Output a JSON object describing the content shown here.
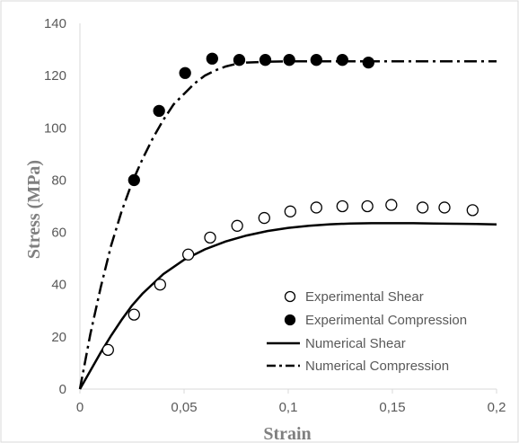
{
  "chart_data": {
    "type": "scatter",
    "title": "",
    "xlabel": "Strain",
    "ylabel": "Stress (MPa)",
    "xlim": [
      0,
      0.2
    ],
    "ylim": [
      0,
      140
    ],
    "x_ticks": [
      "0",
      "0,05",
      "0,1",
      "0,15",
      "0,2"
    ],
    "y_ticks": [
      "0",
      "20",
      "40",
      "60",
      "80",
      "100",
      "120",
      "140"
    ],
    "grid": false,
    "legend_position": "bottom-right",
    "series": [
      {
        "name": "Experimental Shear",
        "style": "open-circle",
        "color": "#000000",
        "x": [
          0.0135,
          0.026,
          0.0385,
          0.052,
          0.0625,
          0.0755,
          0.0885,
          0.101,
          0.1135,
          0.126,
          0.138,
          0.1495,
          0.1645,
          0.175,
          0.1885
        ],
        "y": [
          15,
          28.5,
          40,
          51.5,
          58,
          62.5,
          65.5,
          68,
          69.5,
          70,
          70,
          70.5,
          69.5,
          69.5,
          68.5
        ]
      },
      {
        "name": "Experimental Compression",
        "style": "filled-circle",
        "color": "#000000",
        "x": [
          0.026,
          0.038,
          0.0505,
          0.0635,
          0.0765,
          0.089,
          0.1005,
          0.1135,
          0.126,
          0.1385
        ],
        "y": [
          80,
          106.5,
          121,
          126.5,
          126,
          126,
          126,
          126,
          126,
          125
        ]
      },
      {
        "name": "Numerical Shear",
        "style": "solid-line",
        "color": "#000000",
        "x": [
          0,
          0.005,
          0.01,
          0.015,
          0.02,
          0.025,
          0.03,
          0.04,
          0.05,
          0.06,
          0.07,
          0.08,
          0.09,
          0.1,
          0.11,
          0.12,
          0.13,
          0.14,
          0.15,
          0.16,
          0.17,
          0.18,
          0.19,
          0.2
        ],
        "y": [
          0,
          7,
          14,
          20.5,
          26.5,
          32,
          36.5,
          44,
          49.5,
          53.5,
          56.5,
          58.8,
          60.5,
          61.7,
          62.5,
          63.1,
          63.4,
          63.5,
          63.5,
          63.5,
          63.4,
          63.3,
          63.2,
          63
        ]
      },
      {
        "name": "Numerical Compression",
        "style": "dash-dot-line",
        "color": "#000000",
        "x": [
          0,
          0.005,
          0.01,
          0.015,
          0.02,
          0.025,
          0.03,
          0.035,
          0.04,
          0.045,
          0.05,
          0.055,
          0.06,
          0.065,
          0.07,
          0.075,
          0.08,
          0.09,
          0.1,
          0.12,
          0.14,
          0.16,
          0.18,
          0.2
        ],
        "y": [
          0,
          21,
          39,
          55,
          68,
          79,
          88,
          96,
          103,
          109,
          113,
          117,
          120,
          122,
          123.5,
          124.5,
          125,
          125.3,
          125.5,
          125.5,
          125.5,
          125.5,
          125.5,
          125.5
        ]
      }
    ]
  }
}
